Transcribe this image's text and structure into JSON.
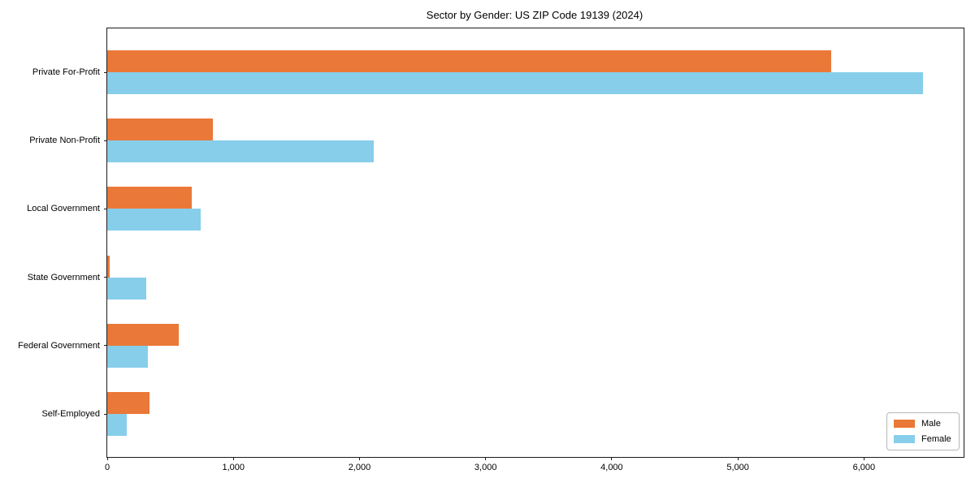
{
  "chart_data": {
    "type": "bar",
    "orientation": "horizontal",
    "title": "Sector by Gender: US ZIP Code 19139 (2024)",
    "categories": [
      "Private For-Profit",
      "Private Non-Profit",
      "Local Government",
      "State Government",
      "Federal Government",
      "Self-Employed"
    ],
    "series": [
      {
        "name": "Male",
        "color": "#ea7838",
        "values": [
          5740,
          840,
          670,
          17,
          570,
          335
        ]
      },
      {
        "name": "Female",
        "color": "#87ceeb",
        "values": [
          6470,
          2110,
          740,
          310,
          320,
          155
        ]
      }
    ],
    "xlabel": "",
    "ylabel": "",
    "xlim": [
      0,
      6790
    ],
    "xticks": [
      0,
      1000,
      2000,
      3000,
      4000,
      5000,
      6000
    ],
    "xtick_labels": [
      "0",
      "1,000",
      "2,000",
      "3,000",
      "4,000",
      "5,000",
      "6,000"
    ],
    "grid": false,
    "frame": true,
    "legend_position": "lower right"
  },
  "colors": {
    "male": "#ea7838",
    "female": "#87ceeb",
    "axis": "#1a1a1a",
    "background": "#ffffff",
    "legend_border": "#b7b7b7"
  }
}
